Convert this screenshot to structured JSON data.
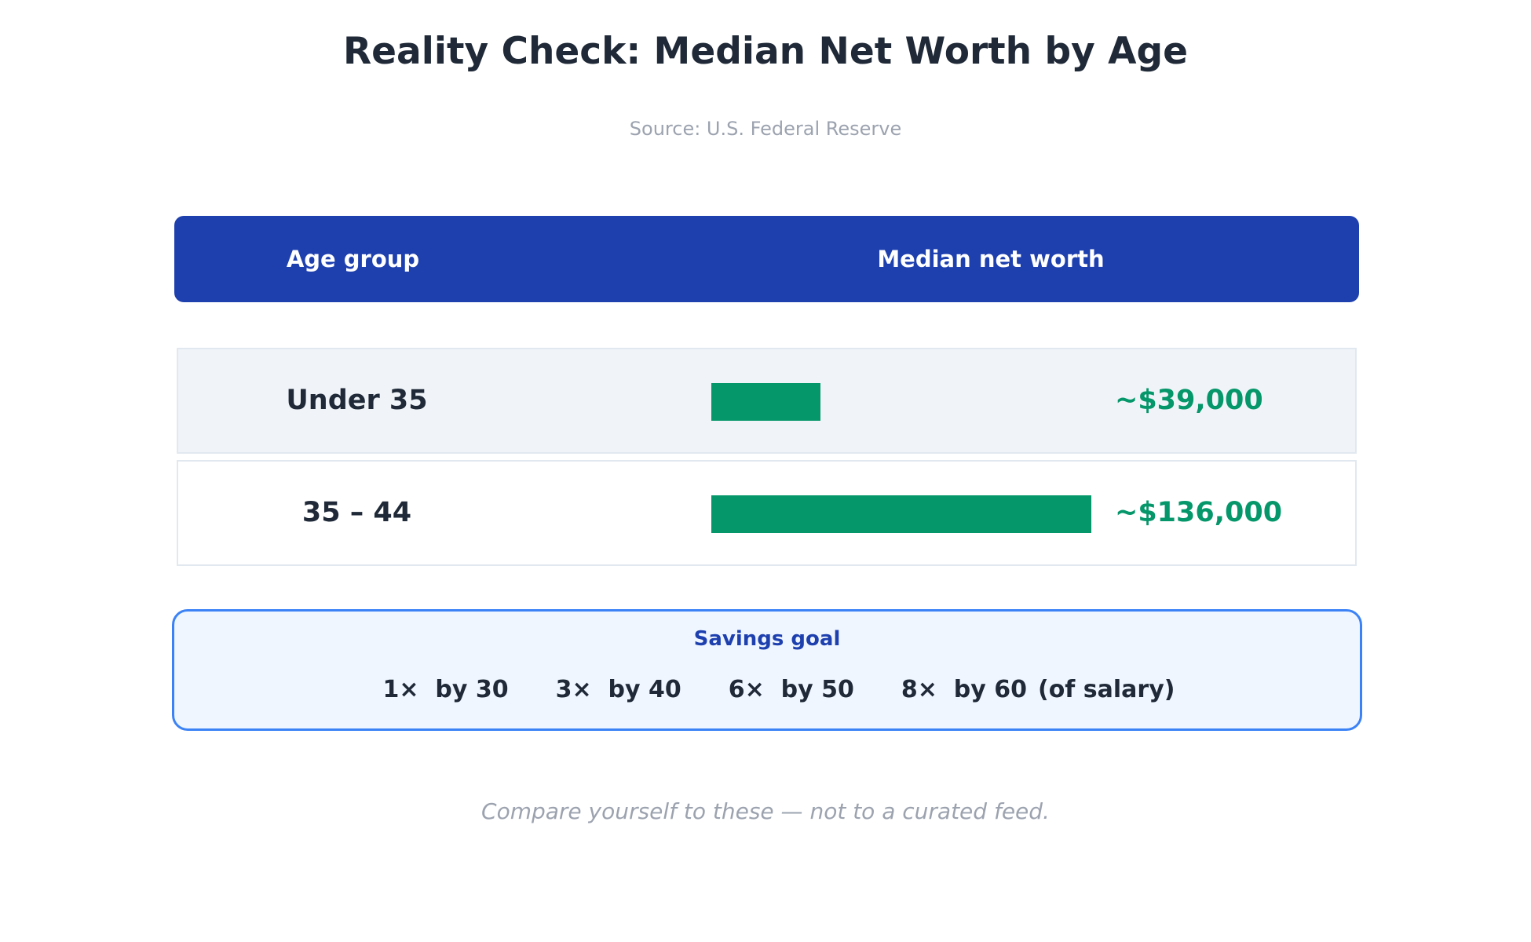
{
  "title": "Reality Check: Median Net Worth by Age",
  "subtitle": "Source: U.S. Federal Reserve",
  "table": {
    "col_age": "Age group",
    "col_worth": "Median net worth"
  },
  "chart_data": {
    "type": "bar",
    "orientation": "horizontal",
    "title": "Reality Check: Median Net Worth by Age",
    "subtitle": "Source: U.S. Federal Reserve",
    "categories": [
      "Under 35",
      "35 – 44"
    ],
    "values": [
      39000,
      136000
    ],
    "value_labels": [
      "~$39,000",
      "~$136,000"
    ],
    "colors": {
      "bar": "#059669",
      "header": "#1e40af"
    }
  },
  "goal": {
    "title": "Savings goal",
    "items": [
      "1×  by 30",
      "3×  by 40",
      "6×  by 50",
      "8×  by 60"
    ],
    "suffix": "(of salary)"
  },
  "footer": "Compare yourself to these — not to a curated feed."
}
